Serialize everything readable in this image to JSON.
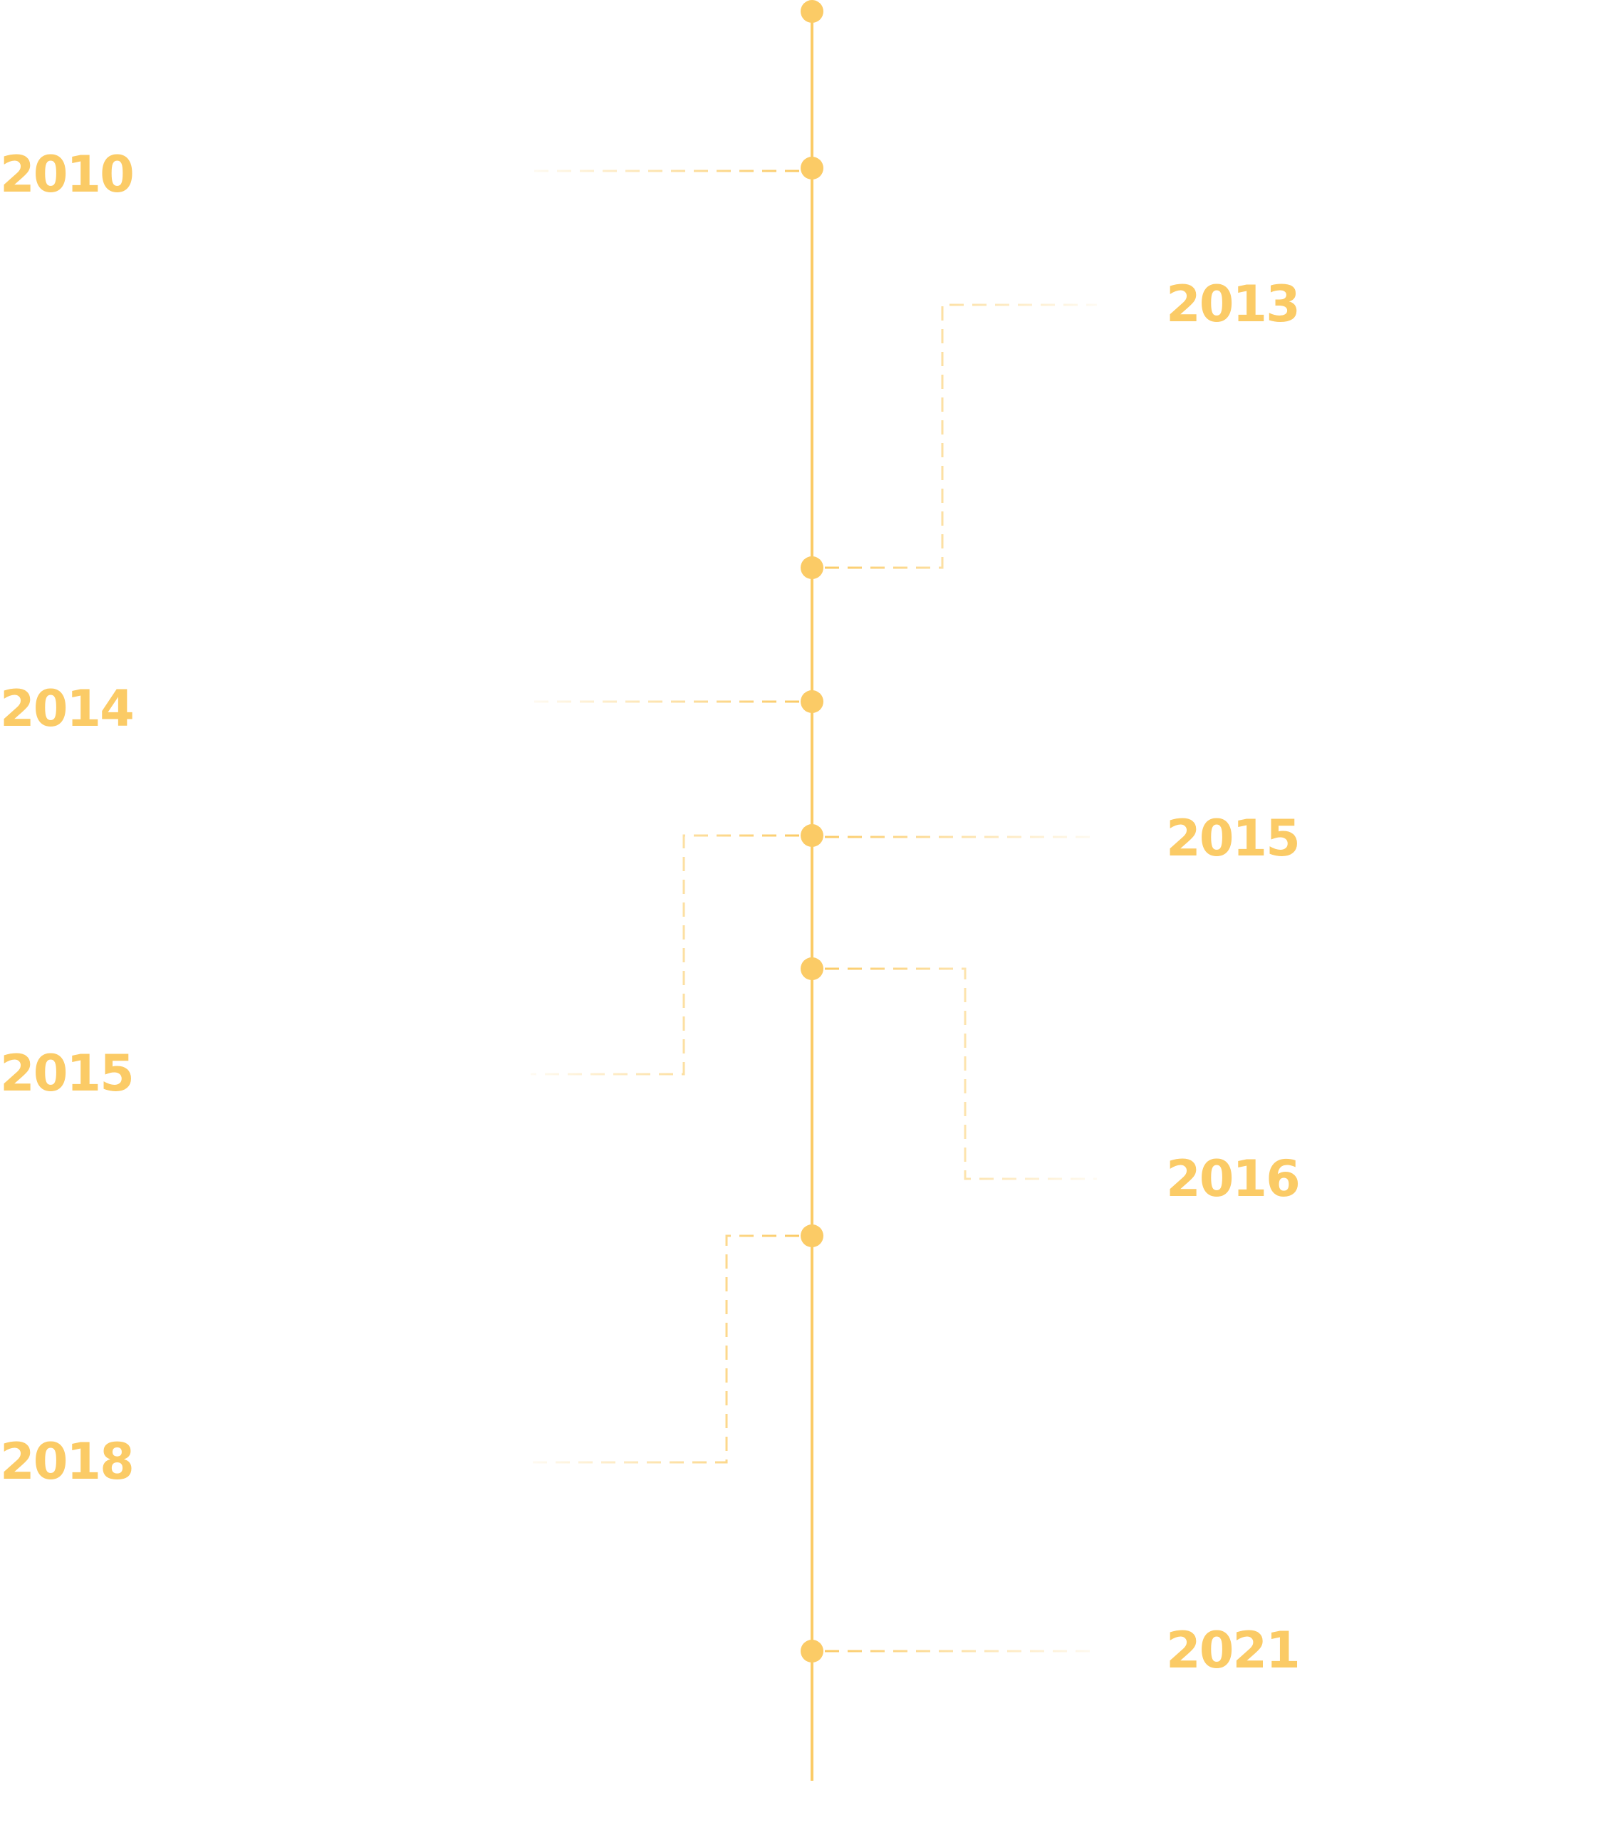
{
  "theme": {
    "accent_color": "#fbcb66",
    "background_color": "#ffffff"
  },
  "events": [
    {
      "year": "2010",
      "side": "left"
    },
    {
      "year": "2013",
      "side": "right"
    },
    {
      "year": "2014",
      "side": "left"
    },
    {
      "year": "2015",
      "side": "right"
    },
    {
      "year": "2015",
      "side": "left"
    },
    {
      "year": "2016",
      "side": "right"
    },
    {
      "year": "2018",
      "side": "left"
    },
    {
      "year": "2021",
      "side": "right"
    }
  ]
}
